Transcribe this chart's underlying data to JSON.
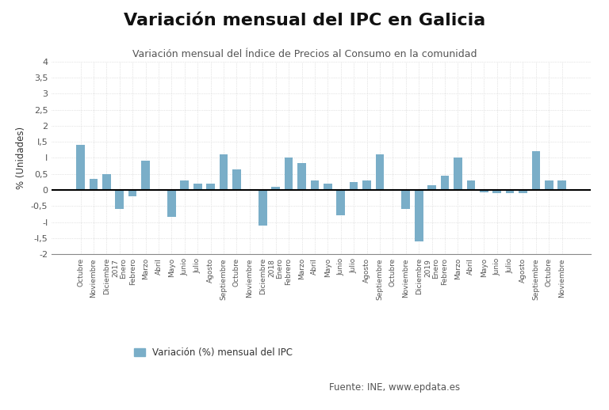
{
  "title": "Variación mensual del IPC en Galicia",
  "subtitle": "Variación mensual del Índice de Precios al Consumo en la comunidad",
  "ylabel": "% (Unidades)",
  "legend_label": "Variación (%) mensual del IPC",
  "source": "Fuente: INE, www.epdata.es",
  "bar_color": "#7aaec8",
  "ylim": [
    -2,
    4
  ],
  "yticks": [
    -2,
    -1.5,
    -1,
    -0.5,
    0,
    0.5,
    1,
    1.5,
    2,
    2.5,
    3,
    3.5,
    4
  ],
  "ytick_labels": [
    "-2",
    "-I,5",
    "-I",
    "-0,5",
    "0",
    "0,5",
    "I",
    "I,5",
    "2",
    "2,5",
    "3",
    "3,5",
    "4"
  ],
  "categories": [
    "Octubre",
    "Noviembre",
    "Diciembre",
    "2017\nEnero",
    "Febrero",
    "Marzo",
    "Abril",
    "Mayo",
    "Junio",
    "Julio",
    "Agosto",
    "Septiembre",
    "Octubre",
    "Noviembre",
    "Diciembre",
    "2018\nEnero",
    "Febrero",
    "Marzo",
    "Abril",
    "Mayo",
    "Junio",
    "Julio",
    "Agosto",
    "Septiembre",
    "Octubre",
    "Noviembre",
    "Diciembre",
    "2019\nEnero",
    "Febrero",
    "Marzo",
    "Abril",
    "Mayo",
    "Junio",
    "Julio",
    "Agosto",
    "Septiembre",
    "Octubre",
    "Noviembre"
  ],
  "values": [
    1.4,
    0.35,
    0.5,
    -0.6,
    -0.2,
    0.9,
    0.0,
    -0.85,
    0.3,
    0.2,
    0.2,
    1.1,
    0.65,
    -0.03,
    -1.1,
    0.1,
    1.0,
    0.85,
    0.3,
    0.2,
    -0.8,
    0.25,
    0.3,
    1.1,
    0.0,
    -0.6,
    -1.6,
    0.15,
    0.45,
    1.0,
    0.3,
    -0.07,
    -0.1,
    -0.1,
    -0.1,
    1.2,
    0.3,
    0.3
  ],
  "background_color": "#ffffff",
  "grid_color": "#cccccc",
  "figsize": [
    7.68,
    5.18
  ],
  "dpi": 100
}
